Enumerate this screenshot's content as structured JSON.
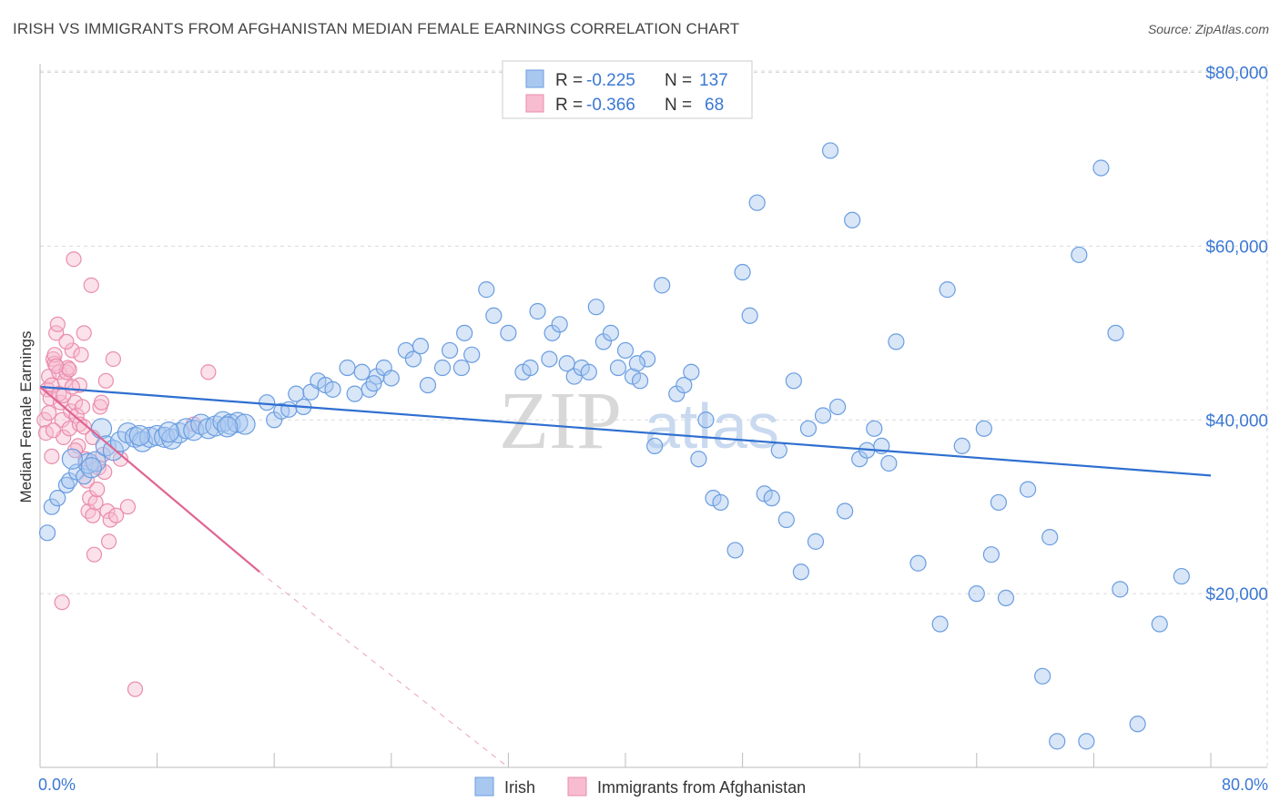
{
  "header": {
    "title": "IRISH VS IMMIGRANTS FROM AFGHANISTAN MEDIAN FEMALE EARNINGS CORRELATION CHART",
    "source": "Source: ZipAtlas.com"
  },
  "watermark": {
    "part1": "ZIP",
    "part2": "atlas"
  },
  "stats_box": {
    "rows": [
      {
        "r_label": "R =",
        "r_value": "-0.225",
        "n_label": "N =",
        "n_value": "137"
      },
      {
        "r_label": "R =",
        "r_value": "-0.366",
        "n_label": "N =",
        "n_value": "68"
      }
    ]
  },
  "legend": {
    "items": [
      "Irish",
      "Immigrants from Afghanistan"
    ]
  },
  "colors": {
    "irish_fill": "#a9c8f0",
    "irish_stroke": "#6a9de0",
    "irish_line": "#2f6fd0",
    "afghan_fill": "#f7bcd0",
    "afghan_stroke": "#ea8cad",
    "afghan_line": "#e06492",
    "grid": "#d9d9d9",
    "axis_text": "#3b78d4"
  },
  "chart_data": {
    "type": "scatter",
    "title": "IRISH VS IMMIGRANTS FROM AFGHANISTAN MEDIAN FEMALE EARNINGS CORRELATION CHART",
    "xlabel": "",
    "ylabel": "Median Female Earnings",
    "xlim": [
      0,
      80
    ],
    "ylim": [
      0,
      81000
    ],
    "x_tick_labels": [
      "0.0%",
      "80.0%"
    ],
    "y_ticks": [
      20000,
      40000,
      60000,
      80000
    ],
    "y_tick_labels": [
      "$20,000",
      "$40,000",
      "$60,000",
      "$80,000"
    ],
    "grid": true,
    "legend_position": "bottom-center",
    "series": [
      {
        "name": "Irish",
        "r": -0.225,
        "n": 137,
        "trend": {
          "x": [
            0,
            80
          ],
          "y": [
            43800,
            33600
          ]
        },
        "points": [
          [
            0.5,
            27000
          ],
          [
            0.8,
            30000
          ],
          [
            1.2,
            31000
          ],
          [
            1.8,
            32500
          ],
          [
            2.0,
            33000
          ],
          [
            2.5,
            34000
          ],
          [
            3.0,
            33500
          ],
          [
            3.3,
            35000
          ],
          [
            3.8,
            35200
          ],
          [
            4.2,
            39000
          ],
          [
            4.5,
            37000
          ],
          [
            5.0,
            36500
          ],
          [
            5.5,
            37500
          ],
          [
            6.0,
            38500
          ],
          [
            6.5,
            38000
          ],
          [
            7.0,
            37500
          ],
          [
            7.5,
            38000
          ],
          [
            8.0,
            38200
          ],
          [
            8.5,
            38000
          ],
          [
            9.0,
            37800
          ],
          [
            9.5,
            38500
          ],
          [
            10.0,
            39000
          ],
          [
            10.5,
            38800
          ],
          [
            11.0,
            39500
          ],
          [
            11.5,
            39000
          ],
          [
            12.0,
            39300
          ],
          [
            12.5,
            39800
          ],
          [
            13.0,
            39500
          ],
          [
            13.5,
            39700
          ],
          [
            14.0,
            39500
          ],
          [
            15.5,
            42000
          ],
          [
            16.0,
            40000
          ],
          [
            16.5,
            41000
          ],
          [
            17.0,
            41200
          ],
          [
            17.5,
            43000
          ],
          [
            18.0,
            41500
          ],
          [
            18.5,
            43200
          ],
          [
            19.0,
            44500
          ],
          [
            19.5,
            44000
          ],
          [
            20.0,
            43500
          ],
          [
            21.0,
            46000
          ],
          [
            21.5,
            43000
          ],
          [
            22.0,
            45500
          ],
          [
            22.5,
            43500
          ],
          [
            23.0,
            45000
          ],
          [
            23.5,
            46000
          ],
          [
            24.0,
            44800
          ],
          [
            25.0,
            48000
          ],
          [
            25.5,
            47000
          ],
          [
            26.0,
            48500
          ],
          [
            26.5,
            44000
          ],
          [
            27.5,
            46000
          ],
          [
            28.0,
            48000
          ],
          [
            29.0,
            50000
          ],
          [
            29.5,
            47500
          ],
          [
            30.5,
            55000
          ],
          [
            31.0,
            52000
          ],
          [
            32.0,
            50000
          ],
          [
            33.0,
            45500
          ],
          [
            33.5,
            46000
          ],
          [
            34.0,
            52500
          ],
          [
            35.0,
            50000
          ],
          [
            35.5,
            51000
          ],
          [
            36.0,
            46500
          ],
          [
            36.5,
            45000
          ],
          [
            37.0,
            46000
          ],
          [
            37.5,
            45500
          ],
          [
            38.0,
            53000
          ],
          [
            38.5,
            49000
          ],
          [
            39.0,
            50000
          ],
          [
            39.5,
            46000
          ],
          [
            40.0,
            48000
          ],
          [
            40.5,
            45000
          ],
          [
            41.0,
            44500
          ],
          [
            41.5,
            47000
          ],
          [
            42.0,
            37000
          ],
          [
            42.5,
            55500
          ],
          [
            43.5,
            43000
          ],
          [
            44.0,
            44000
          ],
          [
            44.5,
            45500
          ],
          [
            45.0,
            35500
          ],
          [
            45.5,
            40000
          ],
          [
            46.0,
            31000
          ],
          [
            46.5,
            30500
          ],
          [
            47.5,
            25000
          ],
          [
            48.0,
            57000
          ],
          [
            48.5,
            52000
          ],
          [
            49.0,
            65000
          ],
          [
            49.5,
            31500
          ],
          [
            50.0,
            31000
          ],
          [
            50.5,
            36500
          ],
          [
            51.0,
            28500
          ],
          [
            51.5,
            44500
          ],
          [
            52.0,
            22500
          ],
          [
            52.5,
            39000
          ],
          [
            53.0,
            26000
          ],
          [
            53.5,
            40500
          ],
          [
            54.0,
            71000
          ],
          [
            54.5,
            41500
          ],
          [
            55.0,
            29500
          ],
          [
            55.5,
            63000
          ],
          [
            56.0,
            35500
          ],
          [
            56.5,
            36500
          ],
          [
            57.0,
            39000
          ],
          [
            57.5,
            37000
          ],
          [
            58.0,
            35000
          ],
          [
            58.5,
            49000
          ],
          [
            60.0,
            23500
          ],
          [
            61.5,
            16500
          ],
          [
            62.0,
            55000
          ],
          [
            63.0,
            37000
          ],
          [
            64.0,
            20000
          ],
          [
            64.5,
            39000
          ],
          [
            65.0,
            24500
          ],
          [
            65.5,
            30500
          ],
          [
            66.0,
            19500
          ],
          [
            67.5,
            32000
          ],
          [
            68.5,
            10500
          ],
          [
            69.0,
            26500
          ],
          [
            69.5,
            3000
          ],
          [
            71.0,
            59000
          ],
          [
            71.5,
            3000
          ],
          [
            72.5,
            69000
          ],
          [
            73.5,
            50000
          ],
          [
            73.8,
            20500
          ],
          [
            75.0,
            5000
          ],
          [
            76.5,
            16500
          ],
          [
            78.0,
            22000
          ],
          [
            2.2,
            35500
          ],
          [
            3.5,
            34500
          ],
          [
            6.8,
            38200
          ],
          [
            8.8,
            38600
          ],
          [
            12.8,
            39200
          ],
          [
            22.8,
            44200
          ],
          [
            28.8,
            46000
          ],
          [
            34.8,
            47000
          ],
          [
            40.8,
            46500
          ]
        ]
      },
      {
        "name": "Immigrants from Afghanistan",
        "r": -0.366,
        "n": 68,
        "trend": {
          "x": [
            0,
            15
          ],
          "y": [
            43800,
            22500
          ],
          "dash_to": {
            "x": 32,
            "y": 0
          }
        },
        "points": [
          [
            0.3,
            40000
          ],
          [
            0.4,
            38500
          ],
          [
            0.5,
            43500
          ],
          [
            0.6,
            45000
          ],
          [
            0.7,
            42500
          ],
          [
            0.8,
            44000
          ],
          [
            0.9,
            47000
          ],
          [
            1.0,
            46500
          ],
          [
            1.1,
            50000
          ],
          [
            1.2,
            51000
          ],
          [
            1.3,
            45500
          ],
          [
            1.4,
            42000
          ],
          [
            1.5,
            40000
          ],
          [
            1.6,
            38000
          ],
          [
            1.7,
            44500
          ],
          [
            1.8,
            45500
          ],
          [
            1.9,
            46000
          ],
          [
            2.0,
            39000
          ],
          [
            2.1,
            41000
          ],
          [
            2.2,
            48000
          ],
          [
            2.3,
            58500
          ],
          [
            2.4,
            42000
          ],
          [
            2.5,
            40500
          ],
          [
            2.6,
            37000
          ],
          [
            2.7,
            39500
          ],
          [
            2.8,
            47500
          ],
          [
            2.9,
            41500
          ],
          [
            3.0,
            50000
          ],
          [
            3.1,
            35500
          ],
          [
            3.2,
            33000
          ],
          [
            3.3,
            29500
          ],
          [
            3.4,
            31000
          ],
          [
            3.5,
            55500
          ],
          [
            3.6,
            29000
          ],
          [
            3.7,
            24500
          ],
          [
            3.8,
            30500
          ],
          [
            3.9,
            32000
          ],
          [
            4.0,
            34500
          ],
          [
            4.1,
            41500
          ],
          [
            4.2,
            42000
          ],
          [
            4.3,
            36000
          ],
          [
            4.4,
            34000
          ],
          [
            4.5,
            44500
          ],
          [
            4.6,
            29500
          ],
          [
            4.7,
            26000
          ],
          [
            4.8,
            28500
          ],
          [
            5.0,
            47000
          ],
          [
            5.2,
            29000
          ],
          [
            5.5,
            35500
          ],
          [
            6.0,
            30000
          ],
          [
            6.5,
            9000
          ],
          [
            11.5,
            45500
          ],
          [
            10.5,
            39500
          ],
          [
            1.5,
            19000
          ],
          [
            0.9,
            38800
          ],
          [
            1.3,
            43000
          ],
          [
            2.0,
            45800
          ],
          [
            2.7,
            44000
          ],
          [
            0.6,
            40800
          ],
          [
            1.0,
            47500
          ],
          [
            1.8,
            49000
          ],
          [
            2.4,
            36500
          ],
          [
            3.0,
            39200
          ],
          [
            1.6,
            42800
          ],
          [
            0.8,
            35800
          ],
          [
            2.2,
            43800
          ],
          [
            1.1,
            46200
          ],
          [
            3.6,
            38000
          ]
        ]
      }
    ]
  }
}
